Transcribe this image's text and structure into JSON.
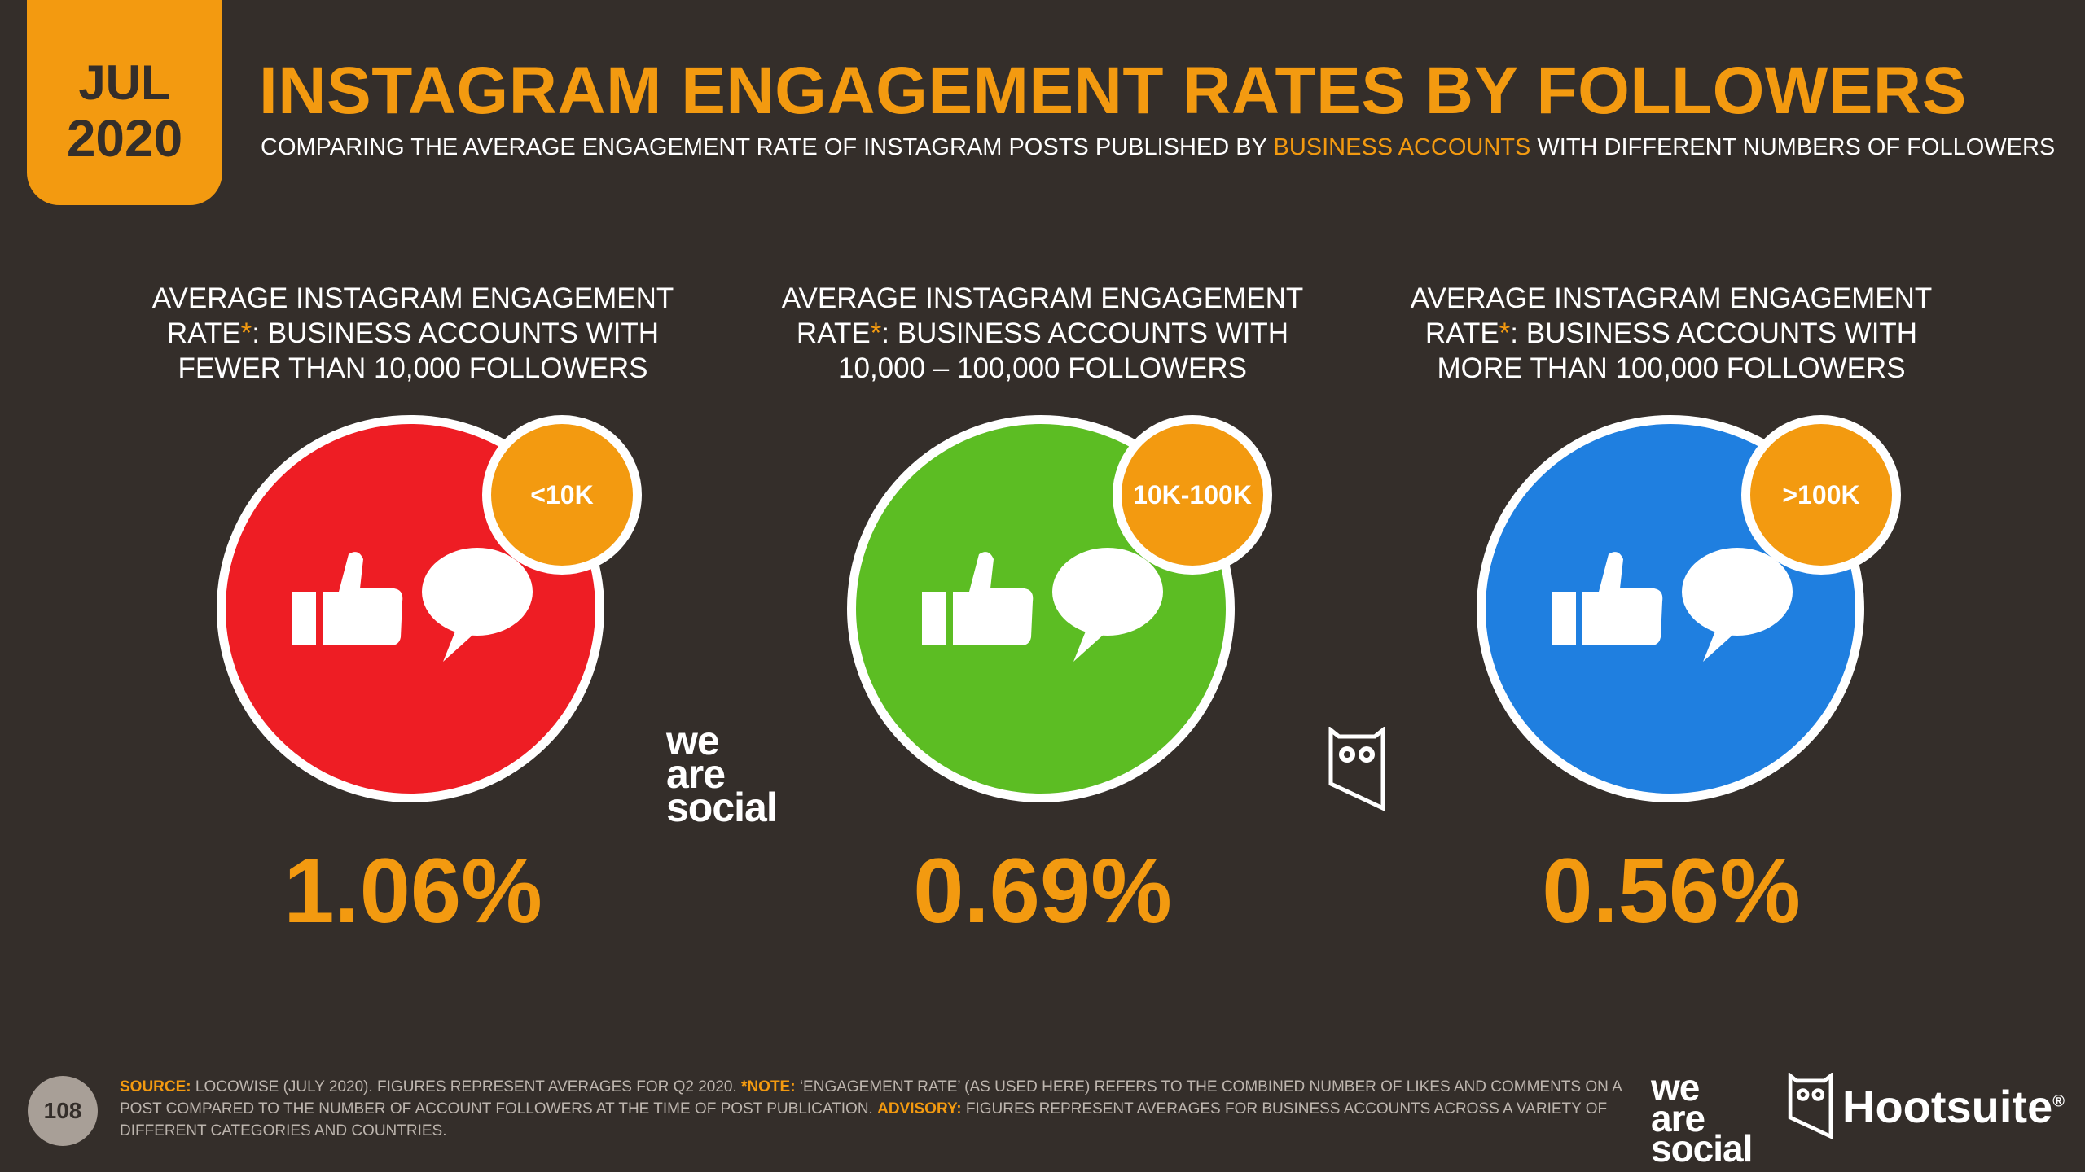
{
  "header": {
    "date_month": "JUL",
    "date_year": "2020",
    "title": "INSTAGRAM ENGAGEMENT RATES BY FOLLOWERS",
    "subtitle_pre": "COMPARING THE AVERAGE ENGAGEMENT RATE OF INSTAGRAM POSTS PUBLISHED BY ",
    "subtitle_highlight": "BUSINESS ACCOUNTS",
    "subtitle_post": " WITH DIFFERENT NUMBERS OF FOLLOWERS"
  },
  "panels": [
    {
      "caption_line1": "AVERAGE INSTAGRAM ENGAGEMENT",
      "caption_rate": "RATE",
      "caption_asterisk": "*",
      "caption_line2_rest": ": BUSINESS ACCOUNTS WITH",
      "caption_line3": "FEWER THAN 10,000 FOLLOWERS",
      "tag": "<10K",
      "value": "1.06%",
      "circle_color": "#ee1d24"
    },
    {
      "caption_line1": "AVERAGE INSTAGRAM ENGAGEMENT",
      "caption_rate": "RATE",
      "caption_asterisk": "*",
      "caption_line2_rest": ": BUSINESS ACCOUNTS WITH",
      "caption_line3": "10,000 – 100,000 FOLLOWERS",
      "tag": "10K-100K",
      "value": "0.69%",
      "circle_color": "#5cbd23"
    },
    {
      "caption_line1": "AVERAGE INSTAGRAM ENGAGEMENT",
      "caption_rate": "RATE",
      "caption_asterisk": "*",
      "caption_line2_rest": ": BUSINESS ACCOUNTS WITH",
      "caption_line3": "MORE THAN 100,000 FOLLOWERS",
      "tag": ">100K",
      "value": "0.56%",
      "circle_color": "#1f7fe0"
    }
  ],
  "logos": {
    "we": "we",
    "are": "are",
    "social": "social",
    "hootsuite": "Hootsuite",
    "hootsuite_reg": "®"
  },
  "footer": {
    "page_number": "108",
    "source_label": "SOURCE:",
    "source_text": " LOCOWISE (JULY 2020). FIGURES REPRESENT AVERAGES FOR Q2 2020. ",
    "note_label": "*NOTE:",
    "note_text": " ‘ENGAGEMENT RATE’ (AS USED HERE) REFERS TO THE COMBINED NUMBER OF LIKES AND COMMENTS ON A POST COMPARED TO THE NUMBER OF ACCOUNT FOLLOWERS AT THE TIME OF POST PUBLICATION. ",
    "advisory_label": "ADVISORY:",
    "advisory_text": " FIGURES REPRESENT AVERAGES FOR BUSINESS ACCOUNTS ACROSS A VARIETY OF DIFFERENT CATEGORIES AND COUNTRIES."
  },
  "colors": {
    "background": "#342e2a",
    "accent": "#f39a10",
    "red": "#ee1d24",
    "green": "#5cbd23",
    "blue": "#1f7fe0"
  }
}
